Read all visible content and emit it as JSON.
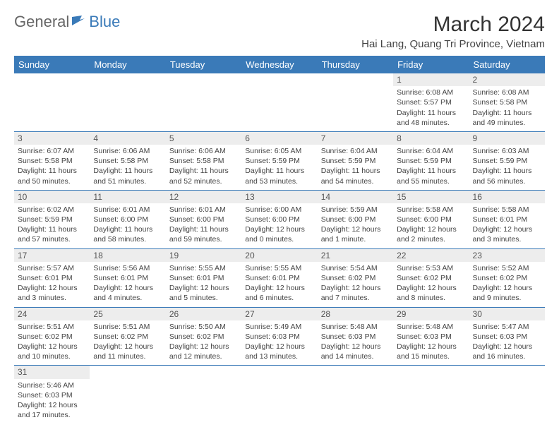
{
  "logo": {
    "word1": "General",
    "word2": "Blue"
  },
  "title": "March 2024",
  "location": "Hai Lang, Quang Tri Province, Vietnam",
  "columns": [
    "Sunday",
    "Monday",
    "Tuesday",
    "Wednesday",
    "Thursday",
    "Friday",
    "Saturday"
  ],
  "colors": {
    "header_bg": "#3a7ab8",
    "header_text": "#ffffff",
    "daynum_bg": "#ededed",
    "cell_border": "#3a7ab8",
    "text": "#444444"
  },
  "typography": {
    "title_fontsize": 30,
    "location_fontsize": 15,
    "dayheader_fontsize": 13,
    "cell_fontsize": 10.5,
    "daynum_fontsize": 12
  },
  "weeks": [
    [
      null,
      null,
      null,
      null,
      null,
      {
        "d": "1",
        "sr": "Sunrise: 6:08 AM",
        "ss": "Sunset: 5:57 PM",
        "dl1": "Daylight: 11 hours",
        "dl2": "and 48 minutes."
      },
      {
        "d": "2",
        "sr": "Sunrise: 6:08 AM",
        "ss": "Sunset: 5:58 PM",
        "dl1": "Daylight: 11 hours",
        "dl2": "and 49 minutes."
      }
    ],
    [
      {
        "d": "3",
        "sr": "Sunrise: 6:07 AM",
        "ss": "Sunset: 5:58 PM",
        "dl1": "Daylight: 11 hours",
        "dl2": "and 50 minutes."
      },
      {
        "d": "4",
        "sr": "Sunrise: 6:06 AM",
        "ss": "Sunset: 5:58 PM",
        "dl1": "Daylight: 11 hours",
        "dl2": "and 51 minutes."
      },
      {
        "d": "5",
        "sr": "Sunrise: 6:06 AM",
        "ss": "Sunset: 5:58 PM",
        "dl1": "Daylight: 11 hours",
        "dl2": "and 52 minutes."
      },
      {
        "d": "6",
        "sr": "Sunrise: 6:05 AM",
        "ss": "Sunset: 5:59 PM",
        "dl1": "Daylight: 11 hours",
        "dl2": "and 53 minutes."
      },
      {
        "d": "7",
        "sr": "Sunrise: 6:04 AM",
        "ss": "Sunset: 5:59 PM",
        "dl1": "Daylight: 11 hours",
        "dl2": "and 54 minutes."
      },
      {
        "d": "8",
        "sr": "Sunrise: 6:04 AM",
        "ss": "Sunset: 5:59 PM",
        "dl1": "Daylight: 11 hours",
        "dl2": "and 55 minutes."
      },
      {
        "d": "9",
        "sr": "Sunrise: 6:03 AM",
        "ss": "Sunset: 5:59 PM",
        "dl1": "Daylight: 11 hours",
        "dl2": "and 56 minutes."
      }
    ],
    [
      {
        "d": "10",
        "sr": "Sunrise: 6:02 AM",
        "ss": "Sunset: 5:59 PM",
        "dl1": "Daylight: 11 hours",
        "dl2": "and 57 minutes."
      },
      {
        "d": "11",
        "sr": "Sunrise: 6:01 AM",
        "ss": "Sunset: 6:00 PM",
        "dl1": "Daylight: 11 hours",
        "dl2": "and 58 minutes."
      },
      {
        "d": "12",
        "sr": "Sunrise: 6:01 AM",
        "ss": "Sunset: 6:00 PM",
        "dl1": "Daylight: 11 hours",
        "dl2": "and 59 minutes."
      },
      {
        "d": "13",
        "sr": "Sunrise: 6:00 AM",
        "ss": "Sunset: 6:00 PM",
        "dl1": "Daylight: 12 hours",
        "dl2": "and 0 minutes."
      },
      {
        "d": "14",
        "sr": "Sunrise: 5:59 AM",
        "ss": "Sunset: 6:00 PM",
        "dl1": "Daylight: 12 hours",
        "dl2": "and 1 minute."
      },
      {
        "d": "15",
        "sr": "Sunrise: 5:58 AM",
        "ss": "Sunset: 6:00 PM",
        "dl1": "Daylight: 12 hours",
        "dl2": "and 2 minutes."
      },
      {
        "d": "16",
        "sr": "Sunrise: 5:58 AM",
        "ss": "Sunset: 6:01 PM",
        "dl1": "Daylight: 12 hours",
        "dl2": "and 3 minutes."
      }
    ],
    [
      {
        "d": "17",
        "sr": "Sunrise: 5:57 AM",
        "ss": "Sunset: 6:01 PM",
        "dl1": "Daylight: 12 hours",
        "dl2": "and 3 minutes."
      },
      {
        "d": "18",
        "sr": "Sunrise: 5:56 AM",
        "ss": "Sunset: 6:01 PM",
        "dl1": "Daylight: 12 hours",
        "dl2": "and 4 minutes."
      },
      {
        "d": "19",
        "sr": "Sunrise: 5:55 AM",
        "ss": "Sunset: 6:01 PM",
        "dl1": "Daylight: 12 hours",
        "dl2": "and 5 minutes."
      },
      {
        "d": "20",
        "sr": "Sunrise: 5:55 AM",
        "ss": "Sunset: 6:01 PM",
        "dl1": "Daylight: 12 hours",
        "dl2": "and 6 minutes."
      },
      {
        "d": "21",
        "sr": "Sunrise: 5:54 AM",
        "ss": "Sunset: 6:02 PM",
        "dl1": "Daylight: 12 hours",
        "dl2": "and 7 minutes."
      },
      {
        "d": "22",
        "sr": "Sunrise: 5:53 AM",
        "ss": "Sunset: 6:02 PM",
        "dl1": "Daylight: 12 hours",
        "dl2": "and 8 minutes."
      },
      {
        "d": "23",
        "sr": "Sunrise: 5:52 AM",
        "ss": "Sunset: 6:02 PM",
        "dl1": "Daylight: 12 hours",
        "dl2": "and 9 minutes."
      }
    ],
    [
      {
        "d": "24",
        "sr": "Sunrise: 5:51 AM",
        "ss": "Sunset: 6:02 PM",
        "dl1": "Daylight: 12 hours",
        "dl2": "and 10 minutes."
      },
      {
        "d": "25",
        "sr": "Sunrise: 5:51 AM",
        "ss": "Sunset: 6:02 PM",
        "dl1": "Daylight: 12 hours",
        "dl2": "and 11 minutes."
      },
      {
        "d": "26",
        "sr": "Sunrise: 5:50 AM",
        "ss": "Sunset: 6:02 PM",
        "dl1": "Daylight: 12 hours",
        "dl2": "and 12 minutes."
      },
      {
        "d": "27",
        "sr": "Sunrise: 5:49 AM",
        "ss": "Sunset: 6:03 PM",
        "dl1": "Daylight: 12 hours",
        "dl2": "and 13 minutes."
      },
      {
        "d": "28",
        "sr": "Sunrise: 5:48 AM",
        "ss": "Sunset: 6:03 PM",
        "dl1": "Daylight: 12 hours",
        "dl2": "and 14 minutes."
      },
      {
        "d": "29",
        "sr": "Sunrise: 5:48 AM",
        "ss": "Sunset: 6:03 PM",
        "dl1": "Daylight: 12 hours",
        "dl2": "and 15 minutes."
      },
      {
        "d": "30",
        "sr": "Sunrise: 5:47 AM",
        "ss": "Sunset: 6:03 PM",
        "dl1": "Daylight: 12 hours",
        "dl2": "and 16 minutes."
      }
    ],
    [
      {
        "d": "31",
        "sr": "Sunrise: 5:46 AM",
        "ss": "Sunset: 6:03 PM",
        "dl1": "Daylight: 12 hours",
        "dl2": "and 17 minutes."
      },
      null,
      null,
      null,
      null,
      null,
      null
    ]
  ]
}
